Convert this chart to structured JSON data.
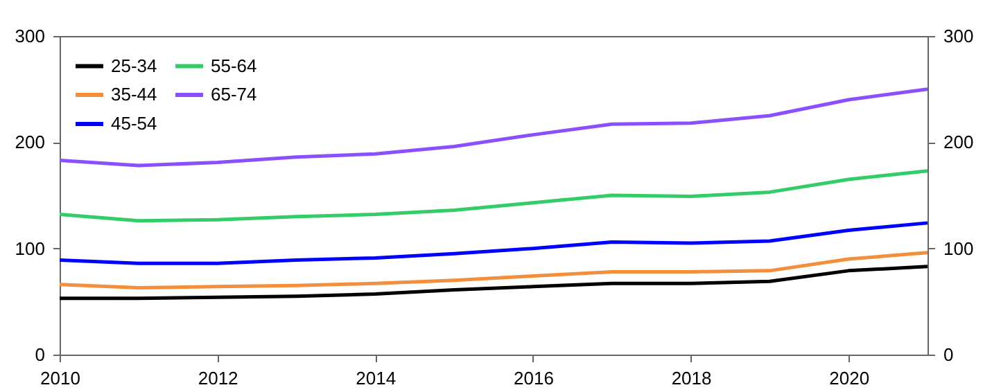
{
  "chart_data": {
    "type": "line",
    "x": [
      2010,
      2011,
      2012,
      2013,
      2014,
      2015,
      2016,
      2017,
      2018,
      2019,
      2020,
      2021
    ],
    "series": [
      {
        "name": "25-34",
        "color": "#000000",
        "values": [
          53,
          53,
          54,
          55,
          57,
          61,
          64,
          67,
          67,
          69,
          79,
          83
        ]
      },
      {
        "name": "35-44",
        "color": "#f28e3c",
        "values": [
          66,
          63,
          64,
          65,
          67,
          70,
          74,
          78,
          78,
          79,
          90,
          96
        ]
      },
      {
        "name": "45-54",
        "color": "#0000ff",
        "values": [
          89,
          86,
          86,
          89,
          91,
          95,
          100,
          106,
          105,
          107,
          117,
          124
        ]
      },
      {
        "name": "55-64",
        "color": "#33cc66",
        "values": [
          132,
          126,
          127,
          130,
          132,
          136,
          143,
          150,
          149,
          153,
          165,
          173
        ]
      },
      {
        "name": "65-74",
        "color": "#8a4fff",
        "values": [
          183,
          178,
          181,
          186,
          189,
          196,
          207,
          217,
          218,
          225,
          240,
          250
        ]
      }
    ],
    "xlim": [
      2010,
      2021
    ],
    "xticks": [
      2010,
      2012,
      2014,
      2016,
      2018,
      2020
    ],
    "ylim": [
      0,
      300
    ],
    "yticks": [
      0,
      100,
      200,
      300
    ],
    "y2lim": [
      0,
      300
    ],
    "y2ticks": [
      0,
      100,
      200,
      300
    ],
    "grid": false,
    "legend": "top left",
    "marker": "none",
    "line_style": "solid"
  }
}
